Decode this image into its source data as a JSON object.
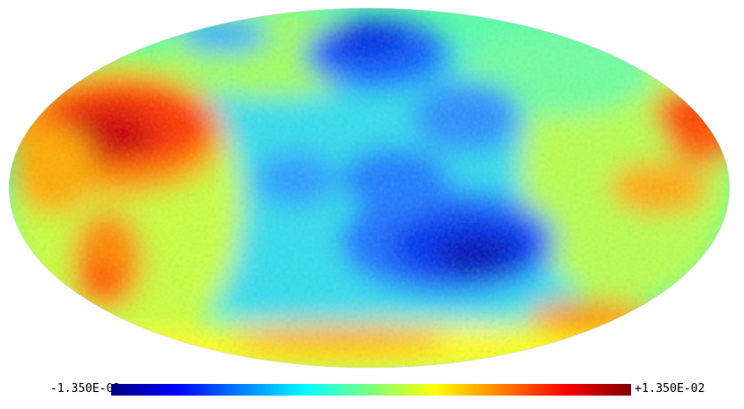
{
  "colorbar": {
    "min_label": "-1.350E-02",
    "max_label": "+1.350E-02",
    "colormap": "jet"
  },
  "map": {
    "projection": "mollweide",
    "background_level": "light cyan / green",
    "hot_regions": [
      "upper-left lobe",
      "right edge",
      "bottom rim"
    ],
    "cold_regions": [
      "top center",
      "center-right lower"
    ]
  }
}
